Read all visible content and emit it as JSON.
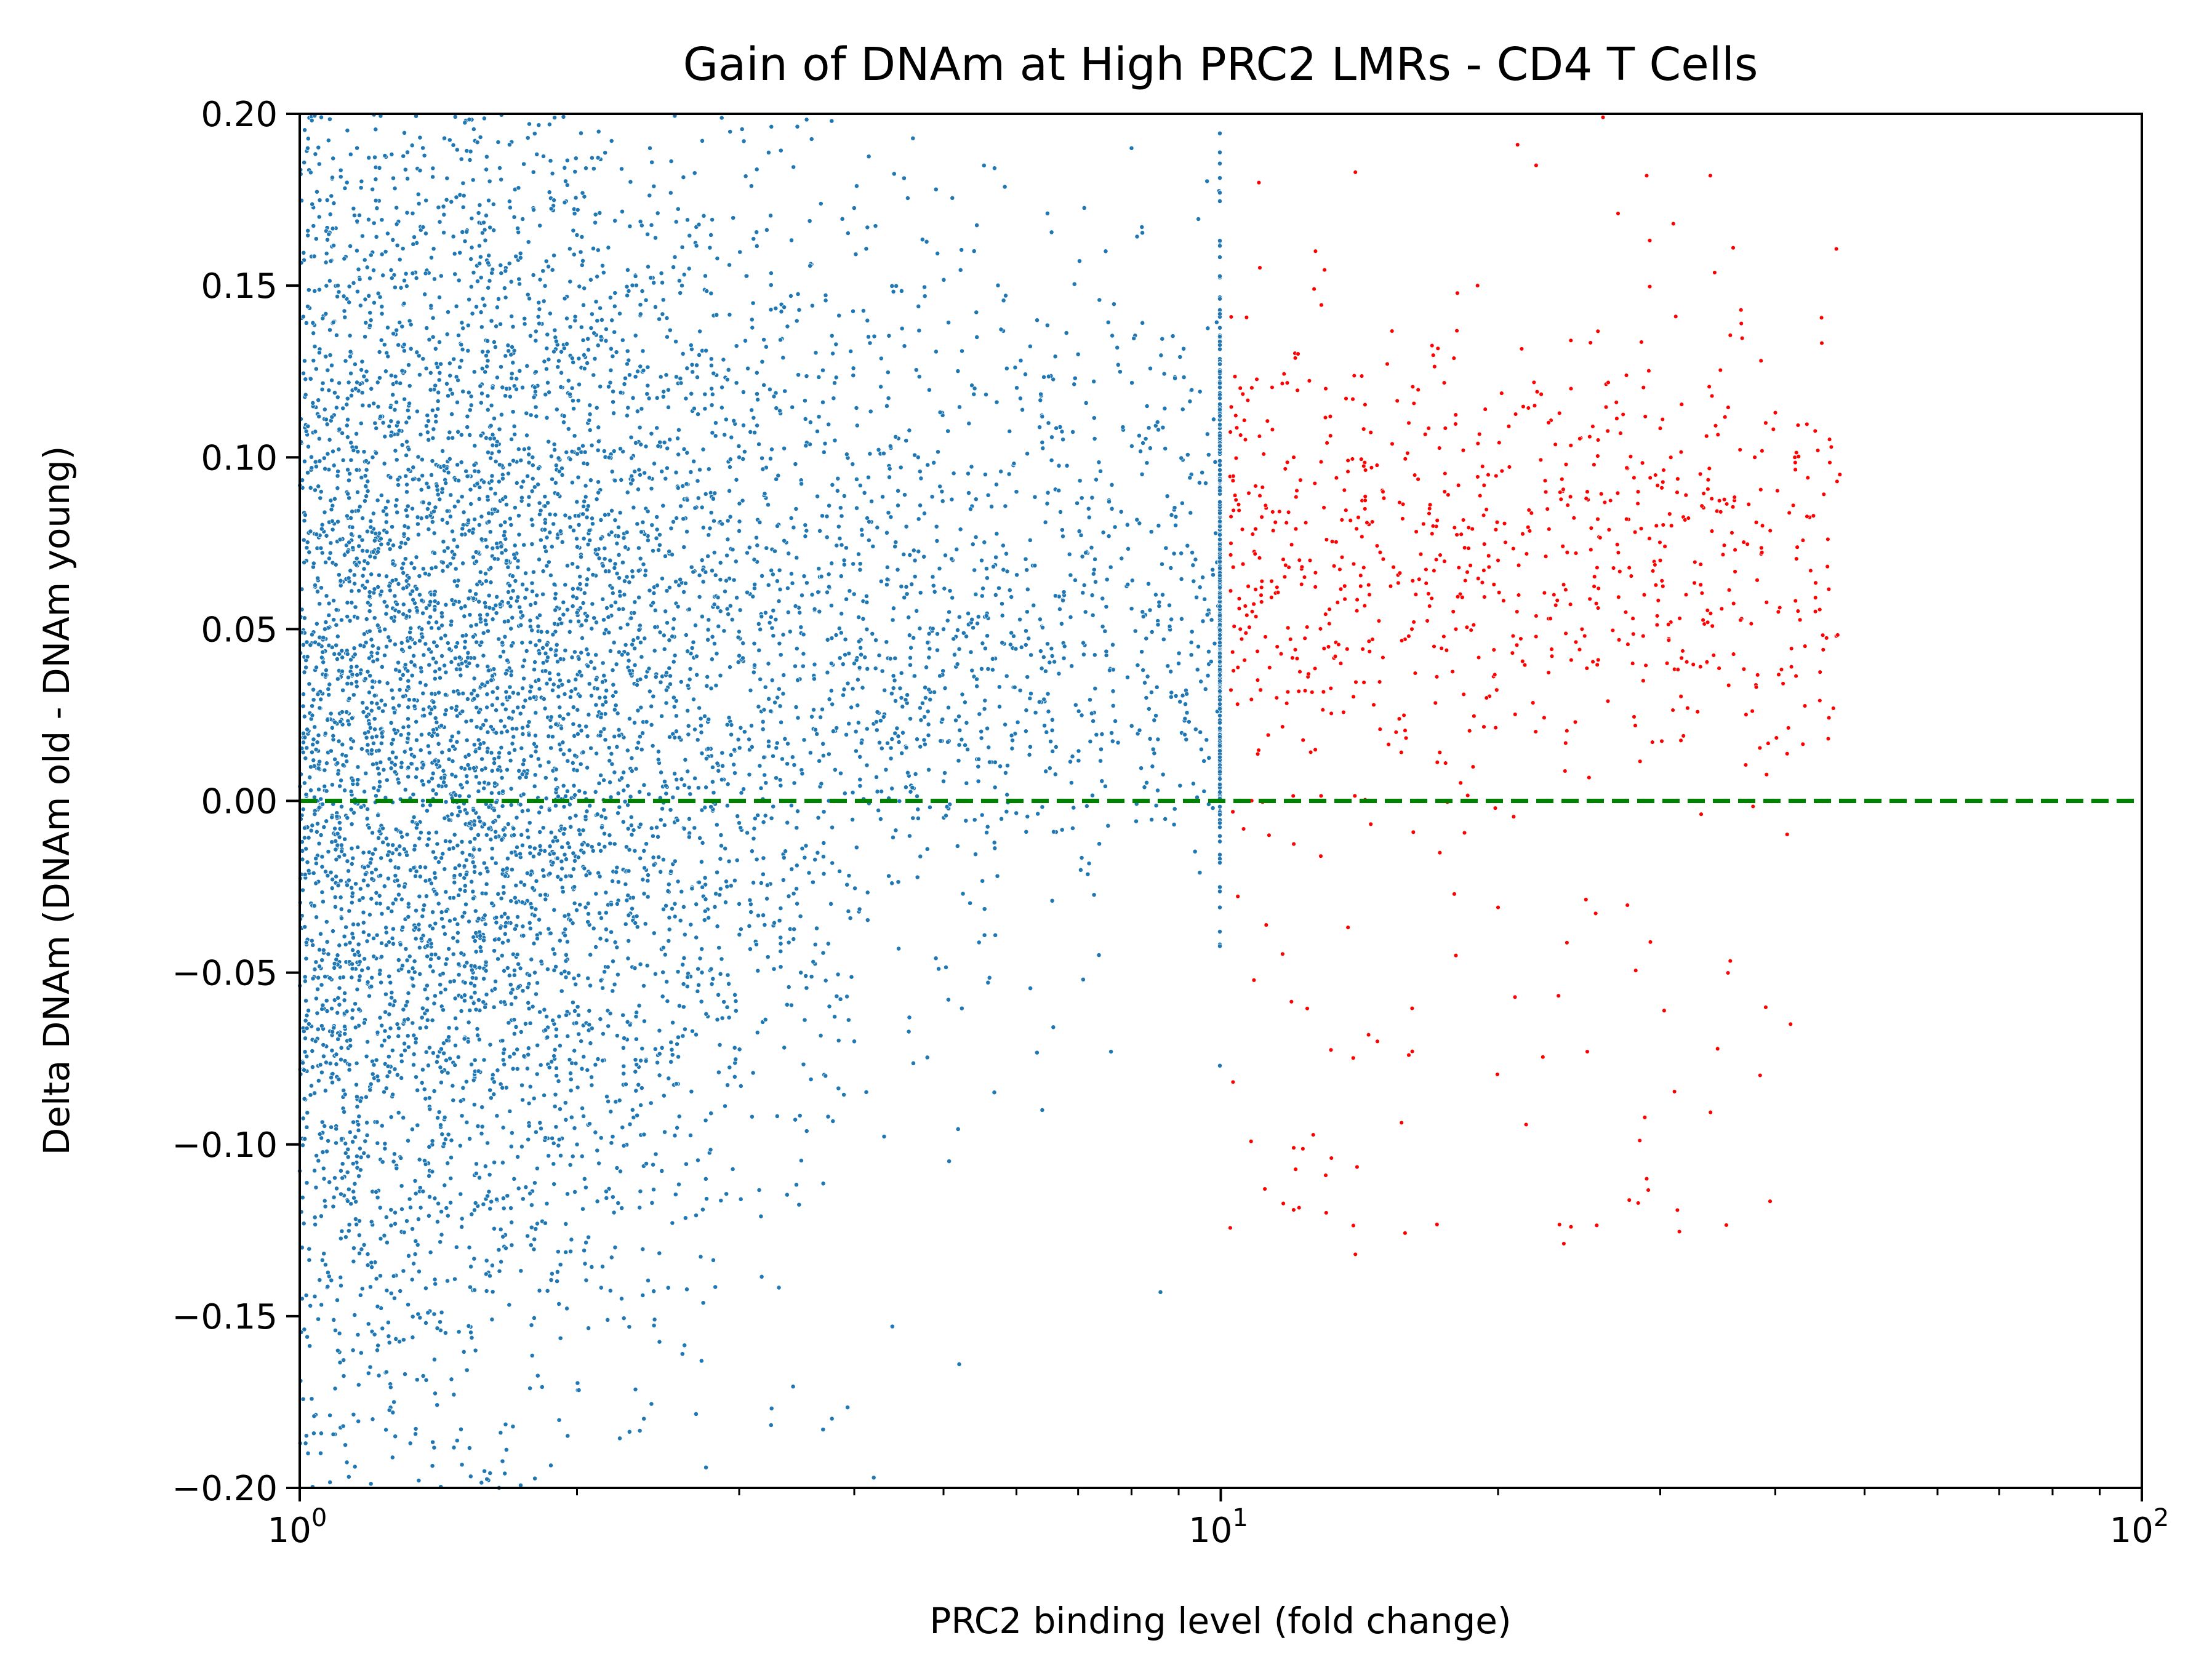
{
  "chart_data": {
    "type": "scatter",
    "title": "Gain of DNAm at High PRC2 LMRs - CD4 T Cells",
    "xlabel": "PRC2 binding level (fold change)",
    "ylabel": "Delta DNAm (DNAm old - DNAm young)",
    "x_scale": "log",
    "xlim": [
      1,
      100
    ],
    "ylim": [
      -0.2,
      0.2
    ],
    "x_ticks": [
      {
        "value": 1,
        "base": "10",
        "exp": "0"
      },
      {
        "value": 10,
        "base": "10",
        "exp": "1"
      },
      {
        "value": 100,
        "base": "10",
        "exp": "2"
      }
    ],
    "y_ticks": [
      {
        "value": 0.2,
        "label": "0.20"
      },
      {
        "value": 0.15,
        "label": "0.15"
      },
      {
        "value": 0.1,
        "label": "0.10"
      },
      {
        "value": 0.05,
        "label": "0.05"
      },
      {
        "value": 0.0,
        "label": "0.00"
      },
      {
        "value": -0.05,
        "label": "−0.05"
      },
      {
        "value": -0.1,
        "label": "−0.10"
      },
      {
        "value": -0.15,
        "label": "−0.15"
      },
      {
        "value": -0.2,
        "label": "−0.20"
      }
    ],
    "reference_line": {
      "y": 0.0,
      "style": "dashed",
      "color": "#008000"
    },
    "grid": false,
    "legend": "none",
    "series": [
      {
        "color": "#1f77b4",
        "x_range": [
          1,
          10
        ],
        "points": [
          [
            1.02,
            0.19
          ],
          [
            1.05,
            0.17
          ],
          [
            1.1,
            0.15
          ],
          [
            1.15,
            0.12
          ],
          [
            1.2,
            0.1
          ],
          [
            1.3,
            0.08
          ],
          [
            1.4,
            0.06
          ],
          [
            1.5,
            0.04
          ],
          [
            1.6,
            0.02
          ],
          [
            1.7,
            -0.02
          ],
          [
            1.8,
            -0.05
          ],
          [
            1.9,
            -0.08
          ],
          [
            2.0,
            -0.1
          ],
          [
            2.2,
            -0.13
          ],
          [
            1.1,
            -0.16
          ],
          [
            1.2,
            -0.18
          ],
          [
            2.4,
            0.19
          ],
          [
            2.6,
            0.15
          ],
          [
            2.8,
            0.12
          ],
          [
            3.0,
            0.1
          ],
          [
            3.3,
            0.08
          ],
          [
            3.6,
            0.06
          ],
          [
            4.0,
            0.04
          ],
          [
            4.5,
            0.03
          ],
          [
            5.0,
            0.05
          ],
          [
            5.5,
            0.07
          ],
          [
            6.0,
            0.09
          ],
          [
            6.5,
            0.11
          ],
          [
            7.0,
            0.13
          ],
          [
            7.5,
            0.16
          ],
          [
            8.0,
            0.19
          ],
          [
            8.5,
            0.06
          ],
          [
            9.0,
            0.04
          ],
          [
            9.5,
            0.02
          ],
          [
            3.0,
            -0.03
          ],
          [
            3.5,
            -0.05
          ],
          [
            4.0,
            -0.07
          ],
          [
            4.4,
            -0.153
          ],
          [
            5.2,
            -0.164
          ],
          [
            6.4,
            -0.09
          ],
          [
            7.6,
            -0.073
          ],
          [
            8.6,
            -0.143
          ],
          [
            3.7,
            -0.183
          ],
          [
            4.2,
            -0.197
          ]
        ]
      },
      {
        "color": "#ff0000",
        "x_range": [
          10,
          50
        ],
        "points": [
          [
            10.5,
            0.05
          ],
          [
            11,
            0.18
          ],
          [
            11.5,
            0.03
          ],
          [
            12,
            0.1
          ],
          [
            12.5,
            0.07
          ],
          [
            13,
            0.12
          ],
          [
            13.5,
            0.04
          ],
          [
            14,
            0.183
          ],
          [
            14.5,
            0.06
          ],
          [
            15,
            0.09
          ],
          [
            15.5,
            0.02
          ],
          [
            16,
            0.11
          ],
          [
            17,
            0.08
          ],
          [
            18,
            0.05
          ],
          [
            19,
            0.15
          ],
          [
            20,
            0.07
          ],
          [
            21,
            0.191
          ],
          [
            22,
            0.185
          ],
          [
            23,
            0.06
          ],
          [
            24,
            0.12
          ],
          [
            25,
            0.09
          ],
          [
            26,
            0.199
          ],
          [
            27,
            0.171
          ],
          [
            28,
            0.04
          ],
          [
            29,
            0.182
          ],
          [
            30,
            0.07
          ],
          [
            31,
            0.168
          ],
          [
            32,
            0.06
          ],
          [
            34,
            0.182
          ],
          [
            36,
            0.161
          ],
          [
            38,
            0.1
          ],
          [
            40,
            0.113
          ],
          [
            42,
            0.1
          ],
          [
            44,
            0.083
          ],
          [
            47,
            0.095
          ],
          [
            12,
            -0.101
          ],
          [
            13,
            -0.109
          ],
          [
            14,
            -0.132
          ],
          [
            16,
            -0.074
          ],
          [
            18,
            -0.045
          ],
          [
            20,
            -0.031
          ],
          [
            24,
            -0.124
          ],
          [
            25,
            -0.073
          ],
          [
            29,
            -0.11
          ]
        ]
      }
    ]
  }
}
